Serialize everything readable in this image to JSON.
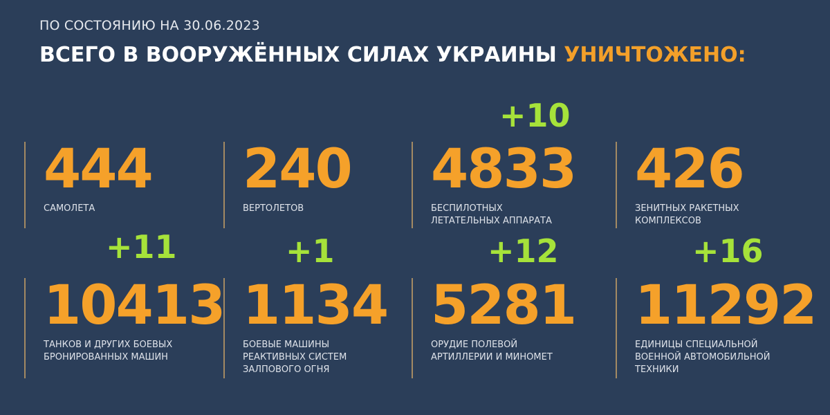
{
  "header": {
    "subtitle": "ПО СОСТОЯНИЮ НА 30.06.2023",
    "title": "ВСЕГО В ВООРУЖЁННЫХ СИЛАХ УКРАИНЫ",
    "title_highlight": "УНИЧТОЖЕНО:"
  },
  "colors": {
    "background": "#2b3e59",
    "number": "#f5a12a",
    "delta": "#a6e23a",
    "label": "#dfe3ea"
  },
  "stats": [
    {
      "value": "444",
      "label": "САМОЛЕТА",
      "delta": ""
    },
    {
      "value": "240",
      "label": "ВЕРТОЛЕТОВ",
      "delta": ""
    },
    {
      "value": "4833",
      "label": "БЕСПИЛОТНЫХ\nЛЕТАТЕЛЬНЫХ АППАРАТА",
      "delta": "+10"
    },
    {
      "value": "426",
      "label": "ЗЕНИТНЫХ РАКЕТНЫХ\nКОМПЛЕКСОВ",
      "delta": ""
    },
    {
      "value": "10413",
      "label": "ТАНКОВ И ДРУГИХ БОЕВЫХ\nБРОНИРОВАННЫХ МАШИН",
      "delta": "+11"
    },
    {
      "value": "1134",
      "label": "БОЕВЫЕ МАШИНЫ\nРЕАКТИВНЫХ СИСТЕМ\nЗАЛПОВОГО ОГНЯ",
      "delta": "+1"
    },
    {
      "value": "5281",
      "label": "ОРУДИЕ ПОЛЕВОЙ\nАРТИЛЛЕРИИ И МИНОМЕТ",
      "delta": "+12"
    },
    {
      "value": "11292",
      "label": "ЕДИНИЦЫ СПЕЦИАЛЬНОЙ\nВОЕННОЙ АВТОМОБИЛЬНОЙ\nТЕХНИКИ",
      "delta": "+16"
    }
  ]
}
